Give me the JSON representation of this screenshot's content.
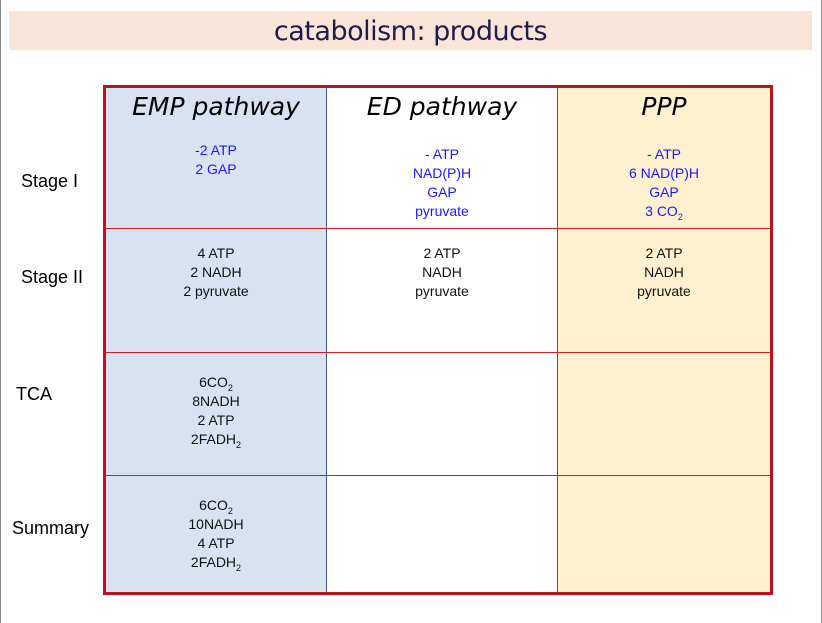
{
  "title": "catabolism: products",
  "row_labels": [
    "Stage I",
    "Stage II",
    "TCA",
    "Summary"
  ],
  "columns": [
    {
      "header": "EMP pathway",
      "background": "#d9e2f2",
      "cells": [
        [
          {
            "text": "-2 ATP"
          },
          {
            "text": "2 GAP"
          }
        ],
        [
          {
            "text": "4 ATP"
          },
          {
            "text": "2 NADH"
          },
          {
            "text": "2 pyruvate"
          }
        ],
        [
          {
            "text": "6CO",
            "sub": "2"
          },
          {
            "text": "8NADH"
          },
          {
            "text": "2 ATP"
          },
          {
            "text": "2FADH",
            "sub": "2"
          }
        ],
        [
          {
            "text": "6CO",
            "sub": "2"
          },
          {
            "text": "10NADH"
          },
          {
            "text": "4 ATP"
          },
          {
            "text": "2FADH",
            "sub": "2"
          }
        ]
      ]
    },
    {
      "header": "ED pathway",
      "background": "#ffffff",
      "cells": [
        [
          {
            "text": "- ATP"
          },
          {
            "text": "NAD(P)H"
          },
          {
            "text": "GAP"
          },
          {
            "text": "pyruvate"
          }
        ],
        [
          {
            "text": "2 ATP"
          },
          {
            "text": "NADH"
          },
          {
            "text": "pyruvate"
          }
        ],
        [],
        []
      ]
    },
    {
      "header": "PPP",
      "background": "#fff1cf",
      "cells": [
        [
          {
            "text": "- ATP"
          },
          {
            "text": "6 NAD(P)H"
          },
          {
            "text": "GAP"
          },
          {
            "text": "3 CO",
            "sub": "2"
          }
        ],
        [
          {
            "text": "2 ATP"
          },
          {
            "text": "NADH"
          },
          {
            "text": "pyruvate"
          }
        ],
        [],
        []
      ]
    }
  ],
  "colors": {
    "stage1_text": "#1a1aff",
    "other_text": "#111111",
    "border": "#c0121c"
  }
}
